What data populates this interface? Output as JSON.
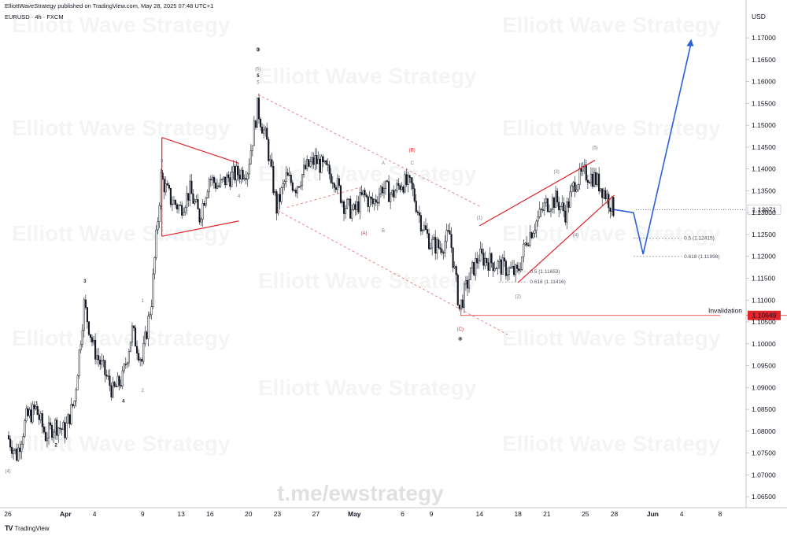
{
  "header": {
    "publisher": "ElliottWaveStrategy published on TradingView.com, May 28, 2025 07:48 UTC+1",
    "symbol": "EURUSD · 4h · FXCM"
  },
  "footer": {
    "brand": "TradingView",
    "logo": "TV"
  },
  "watermarks": {
    "text": "Elliott Wave Strategy",
    "telegram": "t.me/ewstrategy"
  },
  "colors": {
    "bull": "#131722",
    "bear": "#131722",
    "red": "#e0242b",
    "blue": "#2962d4",
    "fib": "#787b86"
  },
  "chart_data": {
    "type": "candlestick",
    "ylabel": "USD",
    "ylim": [
      1.0625,
      1.1765
    ],
    "y_ticks": [
      1.065,
      1.07,
      1.075,
      1.08,
      1.085,
      1.09,
      1.095,
      1.1,
      1.105,
      1.11,
      1.115,
      1.12,
      1.125,
      1.13,
      1.135,
      1.14,
      1.145,
      1.15,
      1.155,
      1.16,
      1.165,
      1.17
    ],
    "x_ticks": [
      {
        "label": "26",
        "x": "Mar 26"
      },
      {
        "label": "Apr",
        "x": "Apr 1"
      },
      {
        "label": "4",
        "x": "Apr 4"
      },
      {
        "label": "9",
        "x": "Apr 9"
      },
      {
        "label": "13",
        "x": "Apr 13"
      },
      {
        "label": "16",
        "x": "Apr 16"
      },
      {
        "label": "20",
        "x": "Apr 20"
      },
      {
        "label": "23",
        "x": "Apr 23"
      },
      {
        "label": "27",
        "x": "Apr 27"
      },
      {
        "label": "May",
        "x": "May 1"
      },
      {
        "label": "6",
        "x": "May 6"
      },
      {
        "label": "9",
        "x": "May 9"
      },
      {
        "label": "14",
        "x": "May 14"
      },
      {
        "label": "18",
        "x": "May 18"
      },
      {
        "label": "21",
        "x": "May 21"
      },
      {
        "label": "25",
        "x": "May 25"
      },
      {
        "label": "28",
        "x": "May 28"
      },
      {
        "label": "Jun",
        "x": "Jun 1"
      },
      {
        "label": "4",
        "x": "Jun 4"
      },
      {
        "label": "8",
        "x": "Jun 8"
      }
    ],
    "price_path": [
      [
        "Mar 26",
        1.079
      ],
      [
        "Mar 27",
        1.0745
      ],
      [
        "Mar 28",
        1.083
      ],
      [
        "Mar 29",
        1.085
      ],
      [
        "Mar 30",
        1.079
      ],
      [
        "Mar 31",
        1.0815
      ],
      [
        "Apr 1",
        1.08
      ],
      [
        "Apr 2",
        1.087
      ],
      [
        "Apr 3",
        1.109
      ],
      [
        "Apr 4",
        1.099
      ],
      [
        "Apr 5",
        1.094
      ],
      [
        "Apr 6",
        1.089
      ],
      [
        "Apr 7",
        1.092
      ],
      [
        "Apr 8",
        1.103
      ],
      [
        "Apr 9",
        1.096
      ],
      [
        "Apr 10",
        1.11
      ],
      [
        "Apr 11",
        1.138
      ],
      [
        "Apr 12",
        1.133
      ],
      [
        "Apr 13",
        1.131
      ],
      [
        "Apr 14",
        1.135
      ],
      [
        "Apr 15",
        1.129
      ],
      [
        "Apr 16",
        1.138
      ],
      [
        "Apr 17",
        1.136
      ],
      [
        "Apr 18",
        1.138
      ],
      [
        "Apr 19",
        1.139
      ],
      [
        "Apr 20",
        1.14
      ],
      [
        "Apr 21",
        1.154
      ],
      [
        "Apr 22",
        1.146
      ],
      [
        "Apr 23",
        1.131
      ],
      [
        "Apr 24",
        1.138
      ],
      [
        "Apr 25",
        1.136
      ],
      [
        "Apr 26",
        1.14
      ],
      [
        "Apr 27",
        1.142
      ],
      [
        "Apr 28",
        1.14
      ],
      [
        "Apr 29",
        1.138
      ],
      [
        "Apr 30",
        1.132
      ],
      [
        "May 1",
        1.13
      ],
      [
        "May 2",
        1.134
      ],
      [
        "May 3",
        1.132
      ],
      [
        "May 4",
        1.136
      ],
      [
        "May 5",
        1.134
      ],
      [
        "May 6",
        1.137
      ],
      [
        "May 7",
        1.136
      ],
      [
        "May 8",
        1.128
      ],
      [
        "May 9",
        1.123
      ],
      [
        "May 10",
        1.122
      ],
      [
        "May 11",
        1.125
      ],
      [
        "May 12",
        1.108
      ],
      [
        "May 13",
        1.115
      ],
      [
        "May 14",
        1.12
      ],
      [
        "May 15",
        1.119
      ],
      [
        "May 16",
        1.118
      ],
      [
        "May 17",
        1.117
      ],
      [
        "May 18",
        1.116
      ],
      [
        "May 19",
        1.124
      ],
      [
        "May 20",
        1.128
      ],
      [
        "May 21",
        1.132
      ],
      [
        "May 22",
        1.133
      ],
      [
        "May 23",
        1.13
      ],
      [
        "May 24",
        1.137
      ],
      [
        "May 25",
        1.139
      ],
      [
        "May 26",
        1.138
      ],
      [
        "May 27",
        1.135
      ],
      [
        "May 28",
        1.1307
      ]
    ],
    "current_price": "1.13071",
    "invalidation": {
      "label": "Invalidation",
      "price": "1.10649"
    },
    "fib_levels": [
      {
        "label": "0.5 (1.11653)",
        "price": 1.11653
      },
      {
        "label": "0.618 (1.11416)",
        "price": 1.11416
      },
      {
        "label": "0.5 (1.12415)",
        "price": 1.12415
      },
      {
        "label": "0.618 (1.11998)",
        "price": 1.11998
      }
    ],
    "wave_labels": [
      {
        "text": "(4)",
        "x": "Mar 26",
        "y": 1.0705,
        "style": "sub"
      },
      {
        "text": "1",
        "x": "Mar 29",
        "y": 1.086,
        "style": "main"
      },
      {
        "text": "2",
        "x": "Mar 31",
        "y": 1.0765,
        "style": "main"
      },
      {
        "text": "3",
        "x": "Apr 3",
        "y": 1.114,
        "style": "main"
      },
      {
        "text": "4",
        "x": "Apr 7",
        "y": 1.0865,
        "style": "main"
      },
      {
        "text": "1",
        "x": "Apr 9",
        "y": 1.1095,
        "style": "sub"
      },
      {
        "text": "2",
        "x": "Apr 9",
        "y": 1.089,
        "style": "sub"
      },
      {
        "text": "3",
        "x": "Apr 11",
        "y": 1.1415,
        "style": "sub"
      },
      {
        "text": "4",
        "x": "Apr 19",
        "y": 1.1335,
        "style": "sub"
      },
      {
        "text": "(5)",
        "x": "Apr 21",
        "y": 1.1625,
        "style": "sub"
      },
      {
        "text": "5",
        "x": "Apr 21",
        "y": 1.161,
        "style": "main"
      },
      {
        "text": "5",
        "x": "Apr 21",
        "y": 1.1595,
        "style": "sub"
      },
      {
        "text": "③",
        "x": "Apr 21",
        "y": 1.167,
        "style": "circle"
      },
      {
        "text": "(A)",
        "x": "May 2",
        "y": 1.125,
        "style": "red"
      },
      {
        "text": "A",
        "x": "May 4",
        "y": 1.141,
        "style": "sub"
      },
      {
        "text": "B",
        "x": "May 4",
        "y": 1.1255,
        "style": "sub"
      },
      {
        "text": "C",
        "x": "May 7",
        "y": 1.141,
        "style": "sub"
      },
      {
        "text": "(B)",
        "x": "May 7",
        "y": 1.144,
        "style": "red"
      },
      {
        "text": "(C)",
        "x": "May 12",
        "y": 1.103,
        "style": "red"
      },
      {
        "text": "④",
        "x": "May 12",
        "y": 1.1008,
        "style": "circle"
      },
      {
        "text": "(1)",
        "x": "May 14",
        "y": 1.1285,
        "style": "sub"
      },
      {
        "text": "(2)",
        "x": "May 18",
        "y": 1.1105,
        "style": "sub"
      },
      {
        "text": "(3)",
        "x": "May 22",
        "y": 1.139,
        "style": "sub"
      },
      {
        "text": "(4)",
        "x": "May 24",
        "y": 1.1245,
        "style": "sub"
      },
      {
        "text": "(5)",
        "x": "May 26",
        "y": 1.1445,
        "style": "sub"
      }
    ],
    "projection": [
      [
        "May 28",
        1.1307
      ],
      [
        "May 30",
        1.13
      ],
      [
        "May 31",
        1.1205
      ],
      [
        "Jun 5",
        1.169
      ]
    ]
  }
}
